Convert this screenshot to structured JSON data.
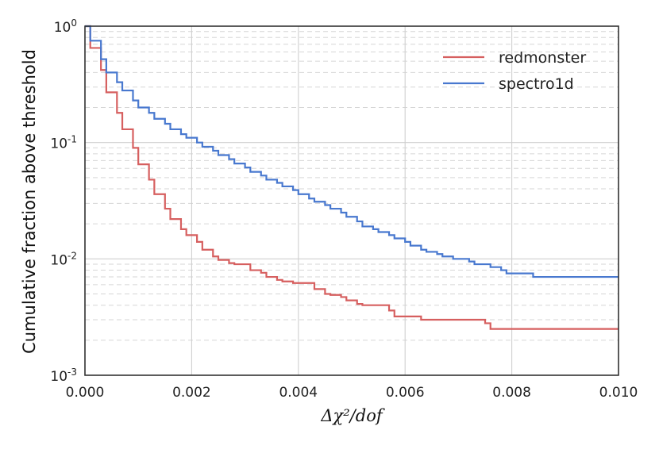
{
  "chart_data": {
    "type": "line",
    "step": true,
    "title": "",
    "xlabel": "Δχ²/dof",
    "ylabel": "Cumulative fraction above threshold",
    "xlim": [
      0,
      0.01
    ],
    "ylim": [
      0.001,
      1
    ],
    "yscale": "log",
    "grid": true,
    "legend_position": "top-right",
    "x_ticks": [
      {
        "value": 0.0,
        "label": "0.000"
      },
      {
        "value": 0.002,
        "label": "0.002"
      },
      {
        "value": 0.004,
        "label": "0.004"
      },
      {
        "value": 0.006,
        "label": "0.006"
      },
      {
        "value": 0.008,
        "label": "0.008"
      },
      {
        "value": 0.01,
        "label": "0.010"
      }
    ],
    "y_ticks": [
      {
        "value": 1,
        "base": "10",
        "exp": "0"
      },
      {
        "value": 0.1,
        "base": "10",
        "exp": "-1"
      },
      {
        "value": 0.01,
        "base": "10",
        "exp": "-2"
      },
      {
        "value": 0.001,
        "base": "10",
        "exp": "-3"
      }
    ],
    "series": [
      {
        "name": "redmonster",
        "color": "#d65f5f",
        "x": [
          0.0,
          0.0001,
          0.0003,
          0.0004,
          0.0006,
          0.0007,
          0.0009,
          0.001,
          0.0012,
          0.0013,
          0.0015,
          0.0016,
          0.0018,
          0.0019,
          0.0021,
          0.0022,
          0.0024,
          0.0025,
          0.0027,
          0.0028,
          0.003,
          0.0031,
          0.0033,
          0.0034,
          0.0036,
          0.0037,
          0.0039,
          0.004,
          0.0042,
          0.0043,
          0.0045,
          0.0046,
          0.0048,
          0.0049,
          0.0051,
          0.0052,
          0.0054,
          0.0055,
          0.0057,
          0.0058,
          0.006,
          0.0061,
          0.0063,
          0.0064,
          0.0066,
          0.0067,
          0.0069,
          0.007,
          0.0072,
          0.0073,
          0.0075,
          0.0076,
          0.0078,
          0.0079,
          0.0081,
          0.0082,
          0.0084,
          0.0085,
          0.0087,
          0.0088,
          0.009,
          0.0091,
          0.0093,
          0.0094,
          0.0096,
          0.0097,
          0.01
        ],
        "y": [
          1.0,
          0.65,
          0.42,
          0.27,
          0.18,
          0.13,
          0.09,
          0.065,
          0.048,
          0.036,
          0.027,
          0.022,
          0.018,
          0.016,
          0.014,
          0.012,
          0.0105,
          0.0098,
          0.0092,
          0.009,
          0.009,
          0.008,
          0.0076,
          0.007,
          0.0066,
          0.0064,
          0.0062,
          0.0062,
          0.0062,
          0.0055,
          0.005,
          0.0049,
          0.0047,
          0.0044,
          0.0041,
          0.004,
          0.004,
          0.004,
          0.0036,
          0.0032,
          0.0032,
          0.0032,
          0.003,
          0.003,
          0.003,
          0.003,
          0.003,
          0.003,
          0.003,
          0.003,
          0.0028,
          0.0025,
          0.0025,
          0.0025,
          0.0025,
          0.0025,
          0.0025,
          0.0025,
          0.0025,
          0.0025,
          0.0025,
          0.0025,
          0.0025,
          0.0025,
          0.0025,
          0.0025,
          0.0025
        ]
      },
      {
        "name": "spectro1d",
        "color": "#4878cf",
        "x": [
          0.0,
          0.0001,
          0.0003,
          0.0004,
          0.0006,
          0.0007,
          0.0009,
          0.001,
          0.0012,
          0.0013,
          0.0015,
          0.0016,
          0.0018,
          0.0019,
          0.0021,
          0.0022,
          0.0024,
          0.0025,
          0.0027,
          0.0028,
          0.003,
          0.0031,
          0.0033,
          0.0034,
          0.0036,
          0.0037,
          0.0039,
          0.004,
          0.0042,
          0.0043,
          0.0045,
          0.0046,
          0.0048,
          0.0049,
          0.0051,
          0.0052,
          0.0054,
          0.0055,
          0.0057,
          0.0058,
          0.006,
          0.0061,
          0.0063,
          0.0064,
          0.0066,
          0.0067,
          0.0069,
          0.007,
          0.0072,
          0.0073,
          0.0075,
          0.0076,
          0.0078,
          0.0079,
          0.0081,
          0.0082,
          0.0084,
          0.0085,
          0.0087,
          0.0088,
          0.009,
          0.0091,
          0.0093,
          0.0094,
          0.0096,
          0.0097,
          0.01
        ],
        "y": [
          1.0,
          0.75,
          0.52,
          0.4,
          0.33,
          0.28,
          0.23,
          0.2,
          0.18,
          0.16,
          0.145,
          0.13,
          0.118,
          0.11,
          0.1,
          0.092,
          0.085,
          0.078,
          0.072,
          0.066,
          0.061,
          0.056,
          0.052,
          0.048,
          0.045,
          0.042,
          0.039,
          0.036,
          0.033,
          0.031,
          0.029,
          0.027,
          0.025,
          0.023,
          0.021,
          0.019,
          0.018,
          0.017,
          0.016,
          0.015,
          0.014,
          0.013,
          0.012,
          0.0115,
          0.011,
          0.0105,
          0.01,
          0.01,
          0.0095,
          0.009,
          0.009,
          0.0085,
          0.008,
          0.0075,
          0.0075,
          0.0075,
          0.007,
          0.007,
          0.007,
          0.007,
          0.007,
          0.007,
          0.007,
          0.007,
          0.007,
          0.007,
          0.007
        ]
      }
    ]
  }
}
